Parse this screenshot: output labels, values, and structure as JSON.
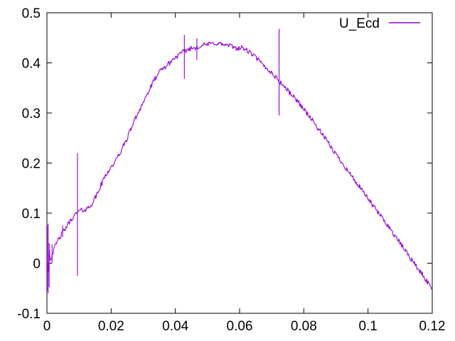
{
  "window": {
    "background": "#ffffff"
  },
  "chart_data": {
    "type": "line",
    "title": "",
    "xlabel": "",
    "ylabel": "",
    "grid": false,
    "background": "#ffffff",
    "border_color": "#000000",
    "text_color": "#000000",
    "xlim": [
      0,
      0.12
    ],
    "ylim": [
      -0.1,
      0.5
    ],
    "xticks": {
      "values": [
        0,
        0.02,
        0.04,
        0.06,
        0.08,
        0.1,
        0.12
      ],
      "labels": [
        "0",
        "0.02",
        "0.04",
        "0.06",
        "0.08",
        "0.1",
        "0.12"
      ]
    },
    "yticks": {
      "values": [
        -0.1,
        0,
        0.1,
        0.2,
        0.3,
        0.4,
        0.5
      ],
      "labels": [
        "-0.1",
        "0",
        "0.1",
        "0.2",
        "0.3",
        "0.4",
        "0.5"
      ]
    },
    "legend": {
      "position": "top-right",
      "entries": [
        "U_Ecd"
      ]
    },
    "series": [
      {
        "name": "U_Ecd",
        "color": "#9400d3",
        "noise_amplitude": 0.0045,
        "points": [
          [
            0.0,
            0.01
          ],
          [
            0.0005,
            -0.02
          ],
          [
            0.0008,
            0.03
          ],
          [
            0.001,
            0.005
          ],
          [
            0.0015,
            0.016
          ],
          [
            0.002,
            0.024
          ],
          [
            0.003,
            0.04
          ],
          [
            0.004,
            0.052
          ],
          [
            0.005,
            0.062
          ],
          [
            0.006,
            0.072
          ],
          [
            0.007,
            0.082
          ],
          [
            0.008,
            0.091
          ],
          [
            0.009,
            0.098
          ],
          [
            0.01,
            0.104
          ],
          [
            0.011,
            0.106
          ],
          [
            0.012,
            0.107
          ],
          [
            0.013,
            0.111
          ],
          [
            0.014,
            0.119
          ],
          [
            0.015,
            0.13
          ],
          [
            0.016,
            0.143
          ],
          [
            0.017,
            0.158
          ],
          [
            0.018,
            0.172
          ],
          [
            0.019,
            0.183
          ],
          [
            0.02,
            0.192
          ],
          [
            0.021,
            0.2
          ],
          [
            0.022,
            0.211
          ],
          [
            0.023,
            0.223
          ],
          [
            0.024,
            0.236
          ],
          [
            0.025,
            0.25
          ],
          [
            0.026,
            0.266
          ],
          [
            0.027,
            0.281
          ],
          [
            0.028,
            0.295
          ],
          [
            0.029,
            0.309
          ],
          [
            0.03,
            0.322
          ],
          [
            0.031,
            0.334
          ],
          [
            0.032,
            0.347
          ],
          [
            0.033,
            0.36
          ],
          [
            0.034,
            0.372
          ],
          [
            0.035,
            0.381
          ],
          [
            0.036,
            0.388
          ],
          [
            0.037,
            0.393
          ],
          [
            0.038,
            0.399
          ],
          [
            0.039,
            0.405
          ],
          [
            0.04,
            0.411
          ],
          [
            0.041,
            0.415
          ],
          [
            0.042,
            0.42
          ],
          [
            0.043,
            0.424
          ],
          [
            0.044,
            0.427
          ],
          [
            0.045,
            0.429
          ],
          [
            0.046,
            0.43
          ],
          [
            0.047,
            0.432
          ],
          [
            0.048,
            0.434
          ],
          [
            0.049,
            0.436
          ],
          [
            0.05,
            0.437
          ],
          [
            0.051,
            0.438
          ],
          [
            0.052,
            0.439
          ],
          [
            0.053,
            0.439
          ],
          [
            0.054,
            0.438
          ],
          [
            0.055,
            0.436
          ],
          [
            0.056,
            0.435
          ],
          [
            0.057,
            0.434
          ],
          [
            0.058,
            0.432
          ],
          [
            0.059,
            0.43
          ],
          [
            0.06,
            0.429
          ],
          [
            0.061,
            0.43
          ],
          [
            0.062,
            0.426
          ],
          [
            0.063,
            0.421
          ],
          [
            0.064,
            0.417
          ],
          [
            0.065,
            0.411
          ],
          [
            0.066,
            0.405
          ],
          [
            0.067,
            0.397
          ],
          [
            0.068,
            0.391
          ],
          [
            0.069,
            0.386
          ],
          [
            0.07,
            0.38
          ],
          [
            0.071,
            0.373
          ],
          [
            0.072,
            0.366
          ],
          [
            0.073,
            0.359
          ],
          [
            0.074,
            0.352
          ],
          [
            0.075,
            0.345
          ],
          [
            0.076,
            0.338
          ],
          [
            0.077,
            0.331
          ],
          [
            0.078,
            0.324
          ],
          [
            0.08,
            0.308
          ],
          [
            0.082,
            0.291
          ],
          [
            0.084,
            0.273
          ],
          [
            0.086,
            0.255
          ],
          [
            0.088,
            0.236
          ],
          [
            0.09,
            0.218
          ],
          [
            0.092,
            0.2
          ],
          [
            0.094,
            0.182
          ],
          [
            0.096,
            0.164
          ],
          [
            0.098,
            0.146
          ],
          [
            0.1,
            0.129
          ],
          [
            0.102,
            0.111
          ],
          [
            0.104,
            0.094
          ],
          [
            0.106,
            0.077
          ],
          [
            0.108,
            0.058
          ],
          [
            0.11,
            0.04
          ],
          [
            0.112,
            0.022
          ],
          [
            0.114,
            0.003
          ],
          [
            0.116,
            -0.015
          ],
          [
            0.118,
            -0.033
          ],
          [
            0.12,
            -0.051
          ]
        ],
        "spikes": [
          [
            0.0001,
            -0.055,
            0.075
          ],
          [
            0.0004,
            -0.06,
            0.079
          ],
          [
            0.0007,
            -0.048,
            0.04
          ],
          [
            0.0016,
            0.0,
            0.038
          ],
          [
            0.0049,
            0.052,
            0.075
          ],
          [
            0.0095,
            -0.025,
            0.22
          ],
          [
            0.0428,
            0.368,
            0.456
          ],
          [
            0.0467,
            0.406,
            0.449
          ],
          [
            0.0723,
            0.295,
            0.468
          ]
        ]
      }
    ]
  }
}
